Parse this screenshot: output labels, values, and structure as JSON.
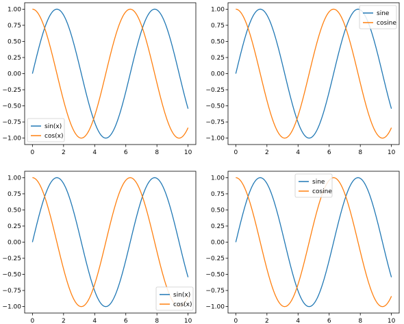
{
  "colors": {
    "sine": "#1f77b4",
    "cosine": "#ff7f0e",
    "axes": "#000000",
    "legend_border": "#cccccc"
  },
  "chart_data": [
    {
      "type": "line",
      "xlim": [
        -0.5,
        10.5
      ],
      "ylim": [
        -1.1,
        1.1
      ],
      "xticks": [
        0,
        2,
        4,
        6,
        8,
        10
      ],
      "yticks": [
        1.0,
        0.75,
        0.5,
        0.25,
        0.0,
        -0.25,
        -0.5,
        -0.75,
        -1.0
      ],
      "xtick_labels": [
        "0",
        "2",
        "4",
        "6",
        "8",
        "10"
      ],
      "ytick_labels": [
        "1.00",
        "0.75",
        "0.50",
        "0.25",
        "0.00",
        "−0.25",
        "−0.50",
        "−0.75",
        "−1.00"
      ],
      "grid": false,
      "legend": "lower-left",
      "series": [
        {
          "name": "sin(x)",
          "function": "sin",
          "x_range": [
            0,
            10
          ],
          "color": "#1f77b4"
        },
        {
          "name": "cos(x)",
          "function": "cos",
          "x_range": [
            0,
            10
          ],
          "color": "#ff7f0e"
        }
      ]
    },
    {
      "type": "line",
      "xlim": [
        -0.5,
        10.5
      ],
      "ylim": [
        -1.1,
        1.1
      ],
      "xticks": [
        0,
        2,
        4,
        6,
        8,
        10
      ],
      "yticks": [
        1.0,
        0.75,
        0.5,
        0.25,
        0.0,
        -0.25,
        -0.5,
        -0.75,
        -1.0
      ],
      "xtick_labels": [
        "0",
        "2",
        "4",
        "6",
        "8",
        "10"
      ],
      "ytick_labels": [
        "1.00",
        "0.75",
        "0.50",
        "0.25",
        "0.00",
        "−0.25",
        "−0.50",
        "−0.75",
        "−1.00"
      ],
      "grid": false,
      "legend": "upper-right",
      "series": [
        {
          "name": "sine",
          "function": "sin",
          "x_range": [
            0,
            10
          ],
          "color": "#1f77b4"
        },
        {
          "name": "cosine",
          "function": "cos",
          "x_range": [
            0,
            10
          ],
          "color": "#ff7f0e"
        }
      ]
    },
    {
      "type": "line",
      "xlim": [
        -0.5,
        10.5
      ],
      "ylim": [
        -1.1,
        1.1
      ],
      "xticks": [
        0,
        2,
        4,
        6,
        8,
        10
      ],
      "yticks": [
        1.0,
        0.75,
        0.5,
        0.25,
        0.0,
        -0.25,
        -0.5,
        -0.75,
        -1.0
      ],
      "xtick_labels": [
        "0",
        "2",
        "4",
        "6",
        "8",
        "10"
      ],
      "ytick_labels": [
        "1.00",
        "0.75",
        "0.50",
        "0.25",
        "0.00",
        "−0.25",
        "−0.50",
        "−0.75",
        "−1.00"
      ],
      "grid": false,
      "legend": "lower-right",
      "series": [
        {
          "name": "sin(x)",
          "function": "sin",
          "x_range": [
            0,
            10
          ],
          "color": "#1f77b4"
        },
        {
          "name": "cos(x)",
          "function": "cos",
          "x_range": [
            0,
            10
          ],
          "color": "#ff7f0e"
        }
      ]
    },
    {
      "type": "line",
      "xlim": [
        -0.5,
        10.5
      ],
      "ylim": [
        -1.1,
        1.1
      ],
      "xticks": [
        0,
        2,
        4,
        6,
        8,
        10
      ],
      "yticks": [
        1.0,
        0.75,
        0.5,
        0.25,
        0.0,
        -0.25,
        -0.5,
        -0.75,
        -1.0
      ],
      "xtick_labels": [
        "0",
        "2",
        "4",
        "6",
        "8",
        "10"
      ],
      "ytick_labels": [
        "1.00",
        "0.75",
        "0.50",
        "0.25",
        "0.00",
        "−0.25",
        "−0.50",
        "−0.75",
        "−1.00"
      ],
      "grid": false,
      "legend": "upper-center",
      "series": [
        {
          "name": "sine",
          "function": "sin",
          "x_range": [
            0,
            10
          ],
          "color": "#1f77b4"
        },
        {
          "name": "cosine",
          "function": "cos",
          "x_range": [
            0,
            10
          ],
          "color": "#ff7f0e"
        }
      ]
    }
  ]
}
